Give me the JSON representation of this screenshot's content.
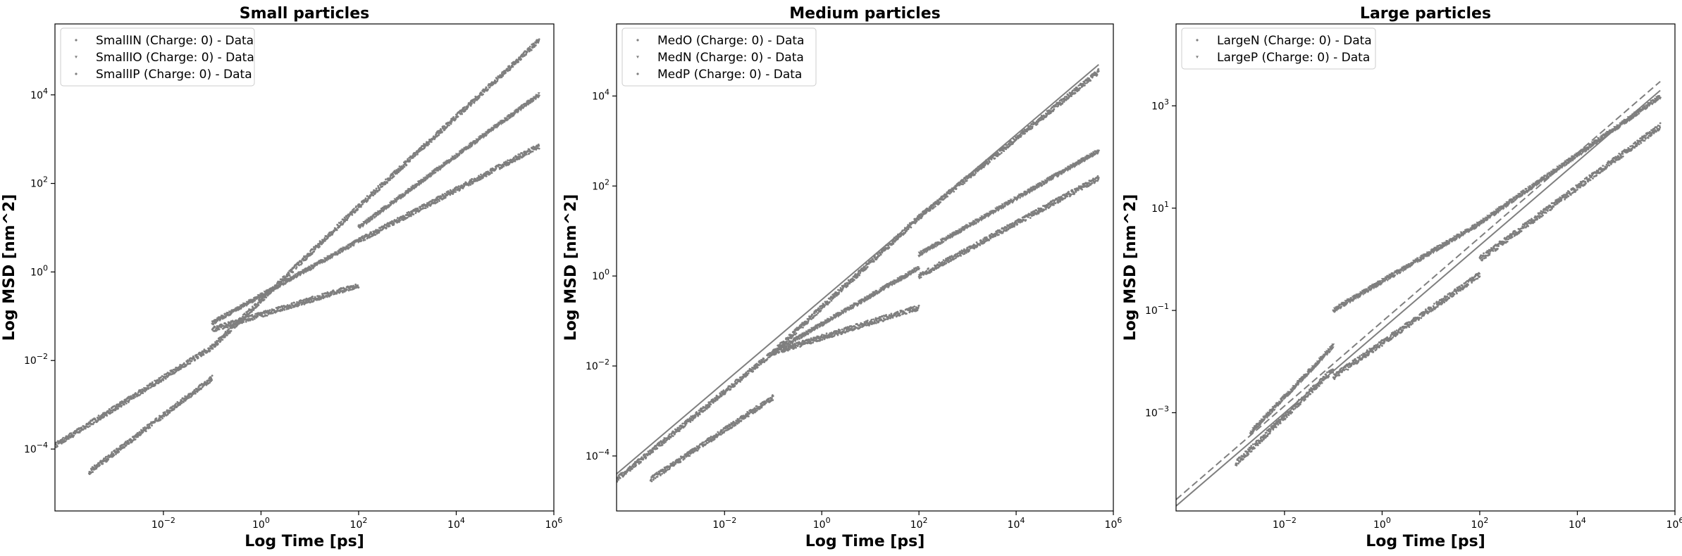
{
  "chart_data": [
    {
      "type": "scatter",
      "title": "Small particles",
      "xlabel": "Log Time [ps]",
      "ylabel": "Log MSD [nm^2]",
      "x_scale": "log",
      "y_scale": "log",
      "xlim": [
        6e-05,
        1000000
      ],
      "ylim": [
        4e-06,
        400000
      ],
      "x_ticks": [
        0.01,
        1,
        100,
        10000,
        1000000
      ],
      "x_tick_labels": [
        {
          "base": "10",
          "exp": "−2"
        },
        {
          "base": "10",
          "exp": "0"
        },
        {
          "base": "10",
          "exp": "2"
        },
        {
          "base": "10",
          "exp": "4"
        },
        {
          "base": "10",
          "exp": "6"
        }
      ],
      "y_ticks": [
        0.0001,
        0.01,
        1,
        100,
        10000
      ],
      "y_tick_labels": [
        {
          "base": "10",
          "exp": "−4"
        },
        {
          "base": "10",
          "exp": "−2"
        },
        {
          "base": "10",
          "exp": "0"
        },
        {
          "base": "10",
          "exp": "2"
        },
        {
          "base": "10",
          "exp": "4"
        }
      ],
      "legend_position": "upper-left",
      "grid": false,
      "marker_color": "#7f7f7f",
      "series": [
        {
          "name": "SmallIN (Charge: 0) - Data",
          "marker": "dot",
          "segments": [
            {
              "x": [
                6e-05,
                0.1
              ],
              "y": [
                0.00012,
                0.02
              ]
            },
            {
              "x": [
                0.1,
                100
              ],
              "y": [
                0.02,
                30
              ]
            },
            {
              "x": [
                100,
                500000
              ],
              "y": [
                30,
                170000
              ]
            }
          ]
        },
        {
          "name": "SmallIO (Charge: 0) - Data",
          "marker": "triangle",
          "segments": [
            {
              "x": [
                0.1,
                100
              ],
              "y": [
                0.07,
                5
              ]
            },
            {
              "x": [
                100,
                500000
              ],
              "y": [
                10,
                10000
              ]
            }
          ]
        },
        {
          "name": "SmallIP (Charge: 0) - Data",
          "marker": "dot",
          "segments": [
            {
              "x": [
                0.0003,
                0.1
              ],
              "y": [
                3e-05,
                0.004
              ]
            },
            {
              "x": [
                0.1,
                100
              ],
              "y": [
                0.05,
                0.5
              ]
            },
            {
              "x": [
                100,
                500000
              ],
              "y": [
                5,
                700
              ]
            }
          ]
        }
      ]
    },
    {
      "type": "scatter",
      "title": "Medium particles",
      "xlabel": "Log Time [ps]",
      "ylabel": "Log MSD [nm^2]",
      "x_scale": "log",
      "y_scale": "log",
      "xlim": [
        6e-05,
        1000000
      ],
      "ylim": [
        6e-06,
        400000
      ],
      "x_ticks": [
        0.01,
        1,
        100,
        10000,
        1000000
      ],
      "x_tick_labels": [
        {
          "base": "10",
          "exp": "−2"
        },
        {
          "base": "10",
          "exp": "0"
        },
        {
          "base": "10",
          "exp": "2"
        },
        {
          "base": "10",
          "exp": "4"
        },
        {
          "base": "10",
          "exp": "6"
        }
      ],
      "y_ticks": [
        0.0001,
        0.01,
        1,
        100,
        10000
      ],
      "y_tick_labels": [
        {
          "base": "10",
          "exp": "−4"
        },
        {
          "base": "10",
          "exp": "−2"
        },
        {
          "base": "10",
          "exp": "0"
        },
        {
          "base": "10",
          "exp": "2"
        },
        {
          "base": "10",
          "exp": "4"
        }
      ],
      "legend_position": "upper-left",
      "grid": false,
      "marker_color": "#7f7f7f",
      "fit_lines": [
        {
          "style": "solid",
          "x": [
            6e-05,
            500000
          ],
          "y": [
            4e-05,
            50000
          ]
        }
      ],
      "series": [
        {
          "name": "MedO (Charge: 0) - Data",
          "marker": "dot",
          "segments": [
            {
              "x": [
                6e-05,
                0.1
              ],
              "y": [
                3e-05,
                0.02
              ]
            },
            {
              "x": [
                0.1,
                100
              ],
              "y": [
                0.02,
                20
              ]
            },
            {
              "x": [
                100,
                500000
              ],
              "y": [
                20,
                35000
              ]
            }
          ]
        },
        {
          "name": "MedN (Charge: 0) - Data",
          "marker": "triangle",
          "segments": [
            {
              "x": [
                0.1,
                100
              ],
              "y": [
                0.02,
                1.5
              ]
            },
            {
              "x": [
                100,
                500000
              ],
              "y": [
                3,
                600
              ]
            }
          ]
        },
        {
          "name": "MedP (Charge: 0) - Data",
          "marker": "dot",
          "segments": [
            {
              "x": [
                0.0003,
                0.1
              ],
              "y": [
                3e-05,
                0.002
              ]
            },
            {
              "x": [
                0.1,
                100
              ],
              "y": [
                0.02,
                0.2
              ]
            },
            {
              "x": [
                100,
                500000
              ],
              "y": [
                1,
                150
              ]
            }
          ]
        }
      ]
    },
    {
      "type": "scatter",
      "title": "Large particles",
      "xlabel": "Log Time [ps]",
      "ylabel": "Log MSD [nm^2]",
      "x_scale": "log",
      "y_scale": "log",
      "xlim": [
        6e-05,
        1000000
      ],
      "ylim": [
        1.2e-05,
        40000
      ],
      "x_ticks": [
        0.01,
        1,
        100,
        10000,
        1000000
      ],
      "x_tick_labels": [
        {
          "base": "10",
          "exp": "−2"
        },
        {
          "base": "10",
          "exp": "0"
        },
        {
          "base": "10",
          "exp": "2"
        },
        {
          "base": "10",
          "exp": "4"
        },
        {
          "base": "10",
          "exp": "6"
        }
      ],
      "y_ticks": [
        0.001,
        0.1,
        10,
        1000
      ],
      "y_tick_labels": [
        {
          "base": "10",
          "exp": "−3"
        },
        {
          "base": "10",
          "exp": "−1"
        },
        {
          "base": "10",
          "exp": "1"
        },
        {
          "base": "10",
          "exp": "3"
        }
      ],
      "legend_position": "upper-left",
      "grid": false,
      "marker_color": "#7f7f7f",
      "fit_lines": [
        {
          "style": "solid",
          "x": [
            6e-05,
            500000
          ],
          "y": [
            1.5e-05,
            2000
          ]
        },
        {
          "style": "dashed",
          "x": [
            6e-05,
            500000
          ],
          "y": [
            2e-05,
            3000
          ]
        }
      ],
      "series": [
        {
          "name": "LargeN (Charge: 0) - Data",
          "marker": "dot",
          "segments": [
            {
              "x": [
                0.001,
                0.1
              ],
              "y": [
                0.0001,
                0.007
              ]
            },
            {
              "x": [
                0.1,
                100
              ],
              "y": [
                0.005,
                0.5
              ]
            },
            {
              "x": [
                100,
                500000
              ],
              "y": [
                1,
                400
              ]
            }
          ]
        },
        {
          "name": "LargeP (Charge: 0) - Data",
          "marker": "triangle",
          "segments": [
            {
              "x": [
                0.002,
                0.1
              ],
              "y": [
                0.0004,
                0.02
              ]
            },
            {
              "x": [
                0.1,
                100
              ],
              "y": [
                0.1,
                5
              ]
            },
            {
              "x": [
                100,
                500000
              ],
              "y": [
                5,
                1500
              ]
            }
          ]
        }
      ]
    }
  ]
}
